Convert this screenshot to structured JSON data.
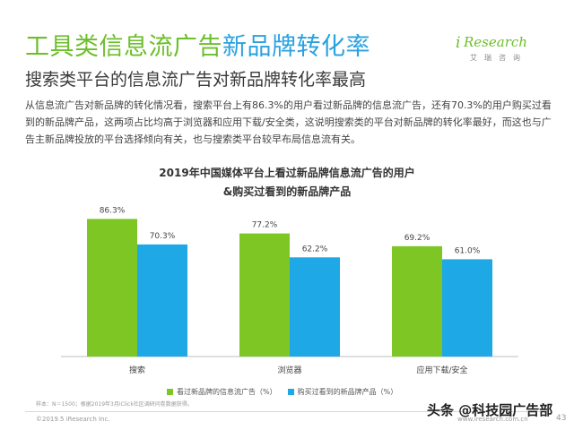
{
  "header": {
    "title_part1": "工具类信息流广告",
    "title_part2": "新品牌转化率",
    "subtitle": "搜索类平台的信息流广告对新品牌转化率最高",
    "logo_i": "i",
    "logo_research": "Research",
    "logo_sub": "艾瑞咨询"
  },
  "paragraph": "从信息流广告对新品牌的转化情况看，搜索平台上有86.3%的用户看过新品牌的信息流广告，还有70.3%的用户购买过看到的新品牌产品，这两项占比均高于浏览器和应用下载/安全类，这说明搜索类的平台对新品牌的转化率最好，而这也与广告主新品牌投放的平台选择倾向有关，也与搜索类平台较早布局信息流有关。",
  "chart_data": {
    "type": "bar",
    "title": "2019年中国媒体平台上看过新品牌信息流广告的用户",
    "subtitle": "&购买过看到的新品牌产品",
    "categories": [
      "搜索",
      "浏览器",
      "应用下载/安全"
    ],
    "series": [
      {
        "name": "看过新品牌的信息流广告（%）",
        "values": [
          86.3,
          77.2,
          69.2
        ],
        "labels": [
          "86.3%",
          "77.2%",
          "69.2%"
        ],
        "color": "#7dc623"
      },
      {
        "name": "购买过看到的新品牌产品（%）",
        "values": [
          70.3,
          62.2,
          61.0
        ],
        "labels": [
          "70.3%",
          "62.2%",
          "61.0%"
        ],
        "color": "#1ea8e6"
      }
    ],
    "ylim": [
      0,
      100
    ],
    "grid": false,
    "legend": "bottom"
  },
  "footer": {
    "note": "样本：N＝1500；根据2019年3月iClick社区调研问卷数据获得。",
    "copyright": "©2019.5 iResearch Inc.",
    "website": "www.iresearch.com.cn",
    "page": "43",
    "watermark": "头条 @科技园广告部"
  }
}
